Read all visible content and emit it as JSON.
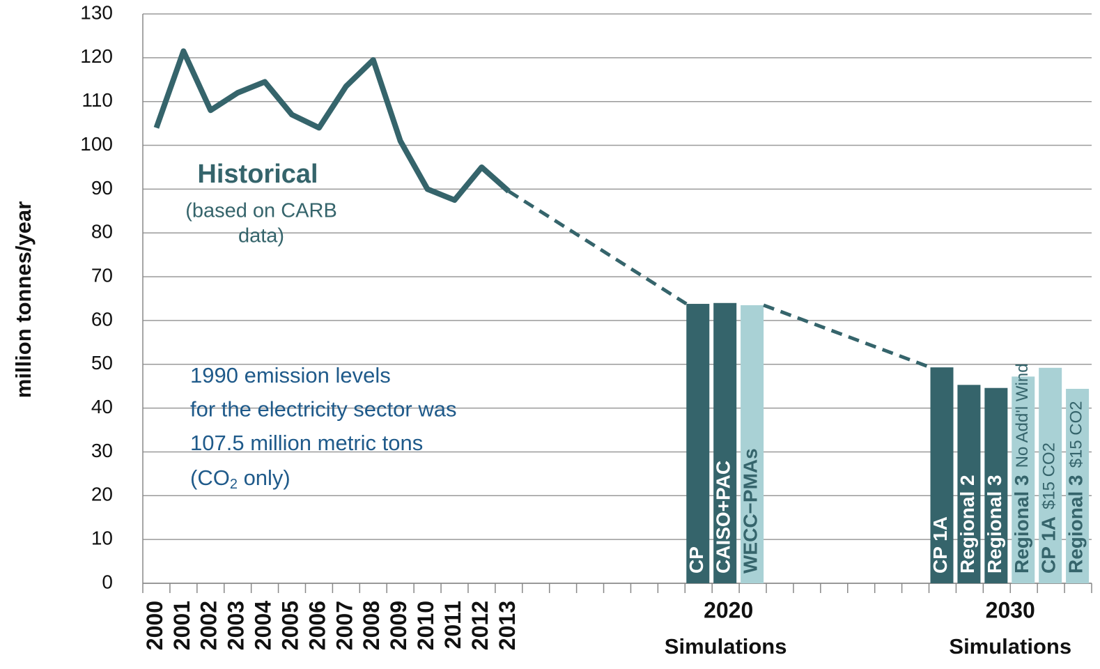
{
  "chart_data": {
    "type": "bar_line",
    "y_label": "million tonnes/year",
    "ylim": [
      0,
      130
    ],
    "yticks": [
      0,
      10,
      20,
      30,
      40,
      50,
      60,
      70,
      80,
      90,
      100,
      110,
      120,
      130
    ],
    "grid": true,
    "categories": [
      "2000",
      "2001",
      "2002",
      "2003",
      "2004",
      "2005",
      "2006",
      "2007",
      "2008",
      "2009",
      "2010",
      "2011",
      "2012",
      "2013"
    ],
    "history": {
      "name": "Historical",
      "note": [
        "(based on CARB",
        "data)"
      ],
      "color": "#35646b",
      "values": [
        104,
        121.5,
        108,
        112,
        114.5,
        107,
        104,
        113.5,
        119.5,
        101,
        90,
        87.5,
        95,
        89.5
      ]
    },
    "groups": [
      {
        "label": "2020",
        "sublabel": "Simulations",
        "bars": [
          {
            "name": "CP",
            "color": "#35646b",
            "value": 63.8
          },
          {
            "name": "CAISO+PAC",
            "color": "#35646b",
            "value": 64
          },
          {
            "name": "WECC−PMAs",
            "color": "#a9d1d5",
            "value": 63.5
          }
        ]
      },
      {
        "label": "2030",
        "sublabel": "Simulations",
        "bars": [
          {
            "name": "CP 1A",
            "color": "#35646b",
            "value": 49.3
          },
          {
            "name": "Regional 2",
            "color": "#35646b",
            "value": 45.3
          },
          {
            "name": "Regional 3",
            "color": "#35646b",
            "value": 44.6
          },
          {
            "name": "Regional 3",
            "note": "No Add'l Wind",
            "color": "#a9d1d5",
            "value": 47.2
          },
          {
            "name": "CP 1A",
            "note": "$15 CO2",
            "color": "#a9d1d5",
            "value": 49.2
          },
          {
            "name": "Regional 3",
            "note": "$15 CO2",
            "color": "#a9d1d5",
            "value": 44.4
          }
        ]
      }
    ],
    "annotation": {
      "lines": [
        "1990 emission levels",
        "for the electricity sector was",
        "107.5 million metric tons"
      ],
      "last": [
        "(CO",
        "2",
        " only)"
      ]
    }
  }
}
